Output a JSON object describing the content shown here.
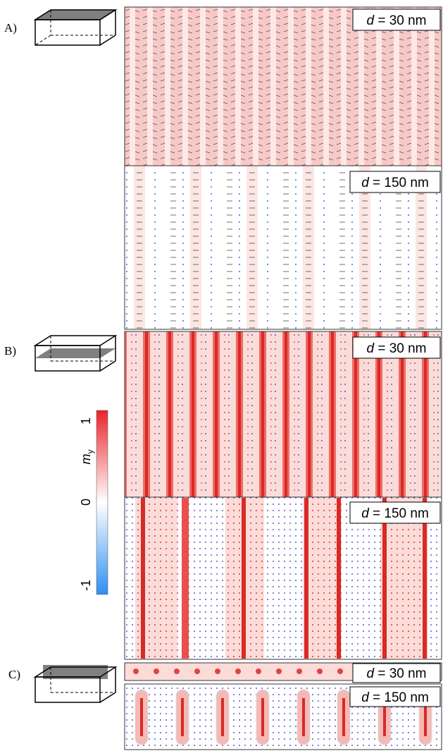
{
  "panels": [
    {
      "label": "A)",
      "views": [
        {
          "var": "d",
          "text": "= 30 nm"
        },
        {
          "var": "d",
          "text": "= 150 nm"
        }
      ]
    },
    {
      "label": "B)",
      "views": [
        {
          "var": "d",
          "text": "= 30 nm"
        },
        {
          "var": "d",
          "text": "= 150 nm"
        }
      ]
    },
    {
      "label": "C)",
      "views": [
        {
          "var": "d",
          "text": "= 30 nm"
        },
        {
          "var": "d",
          "text": "= 150 nm"
        }
      ]
    }
  ],
  "colorbar": {
    "symbol": "m",
    "subscript": "y",
    "ticks": [
      1,
      0,
      -1
    ]
  }
}
